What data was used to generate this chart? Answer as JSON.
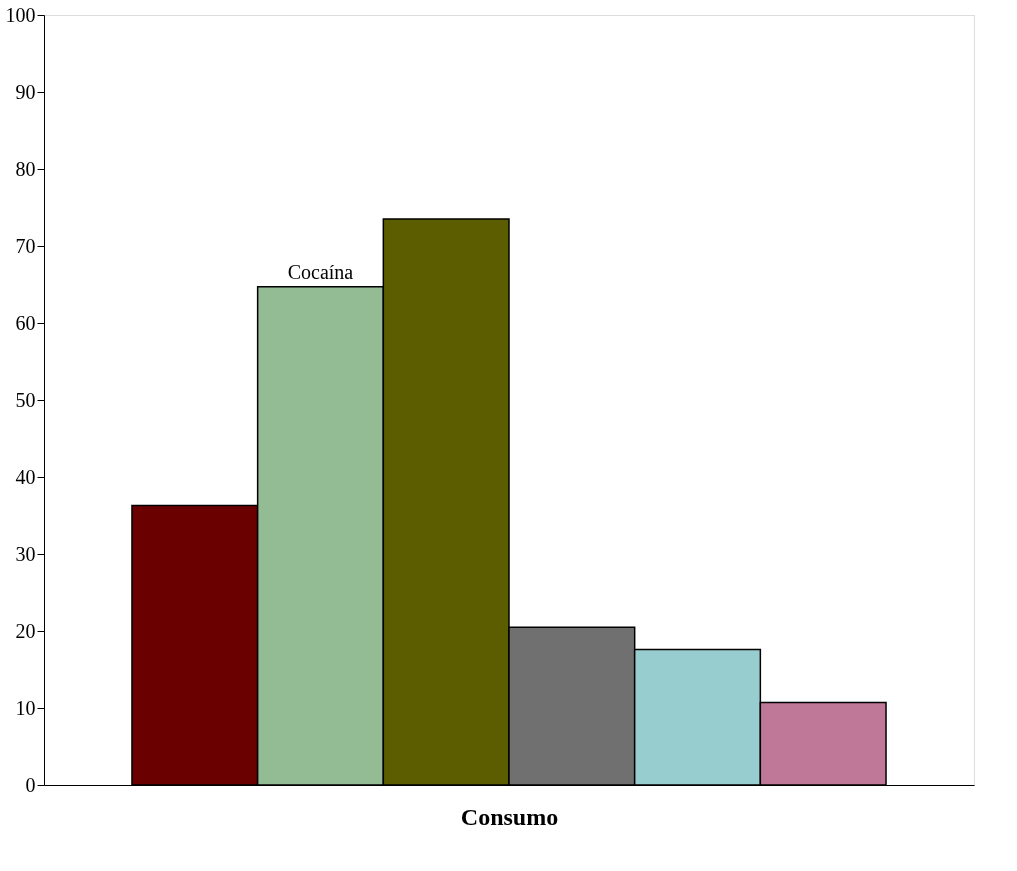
{
  "chart_data": {
    "type": "bar",
    "xlabel": "Consumo",
    "categories": [
      null
    ],
    "series": [
      {
        "color": "#6a0000",
        "values": [
          36.3
        ]
      },
      {
        "name": "Cocaína",
        "color": "#94bc94",
        "values": [
          64.7
        ]
      },
      {
        "color": "#5c5c00",
        "values": [
          73.5
        ]
      },
      {
        "color": "#707070",
        "values": [
          20.5
        ]
      },
      {
        "color": "#98cdd0",
        "values": [
          17.6
        ]
      },
      {
        "color": "#c07898",
        "values": [
          10.7
        ]
      }
    ],
    "ylim": [
      0,
      100
    ],
    "yticks": [
      0,
      10,
      20,
      30,
      40,
      50,
      60,
      70,
      80,
      90,
      100
    ],
    "grid": false,
    "legend": false
  }
}
